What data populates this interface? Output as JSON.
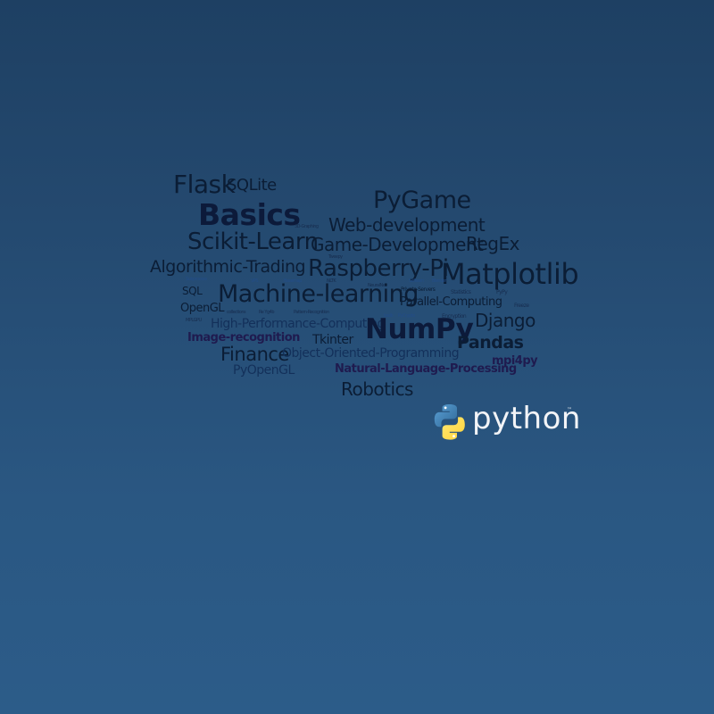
{
  "word_cloud": {
    "words": [
      "Flask",
      "SQLite",
      "PyGame",
      "Basics",
      "Web-development",
      "3D-Graphing",
      "Scikit-Learn",
      "Game-Development",
      "RegEx",
      "Tweepy",
      "Algorithmic-Trading",
      "Raspberry-Pi",
      "Matplotlib",
      "Subprocess",
      "VPS",
      "Basemap",
      "NLTK",
      "Skflearn",
      "Blender",
      "NeuralNet",
      "Private-Servers",
      "Statistics",
      "PyPy",
      "SQL",
      "Machine-learning",
      "OpenGL",
      "Parallel-Computing",
      "Freeze",
      "MPLGPU",
      "Re Yg4b",
      "collections",
      "Pattern-Recognition",
      "bsdb",
      "PyCrypto",
      "Encryption",
      "Django",
      "High-Performance-Computing",
      "NumPy",
      "Image-recognition",
      "Tkinter",
      "Pandas",
      "Finance",
      "Object-Oriented-Programming",
      "mpi4py",
      "PyOpenGL",
      "Natural-Language-Processing",
      "Robotics"
    ]
  },
  "logo": {
    "wordmark": "python",
    "trademark": "™",
    "icon": "python-snakes-icon"
  },
  "colors": {
    "background_top": "#1e4063",
    "background_bottom": "#2c5c89",
    "python_blue": "#3a72a8",
    "python_yellow": "#f7cf3d"
  }
}
